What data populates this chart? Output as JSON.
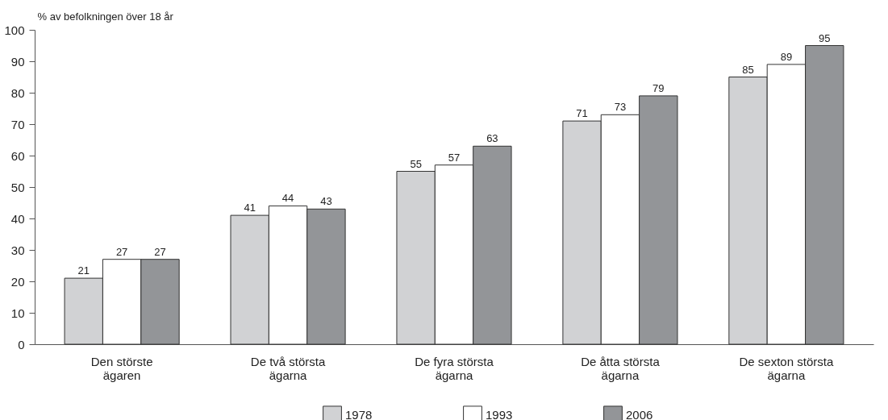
{
  "chart_data": {
    "type": "bar",
    "ylabel": "% av befolkningen över 18 år",
    "categories": [
      "Den störste ägaren",
      "De två största ägarna",
      "De fyra största ägarna",
      "De åtta största ägarna",
      "De sexton största ägarna"
    ],
    "series": [
      {
        "name": "1978",
        "color": "#d1d2d4",
        "values": [
          21,
          41,
          55,
          71,
          85
        ]
      },
      {
        "name": "1993",
        "color": "#ffffff",
        "values": [
          27,
          44,
          57,
          73,
          89
        ]
      },
      {
        "name": "2006",
        "color": "#939598",
        "values": [
          27,
          43,
          63,
          79,
          95
        ]
      }
    ],
    "ylim": [
      0,
      100
    ],
    "yticks": [
      0,
      10,
      20,
      30,
      40,
      50,
      60,
      70,
      80,
      90,
      100
    ],
    "grid": false,
    "legend": "bottom",
    "data_labels": true
  }
}
